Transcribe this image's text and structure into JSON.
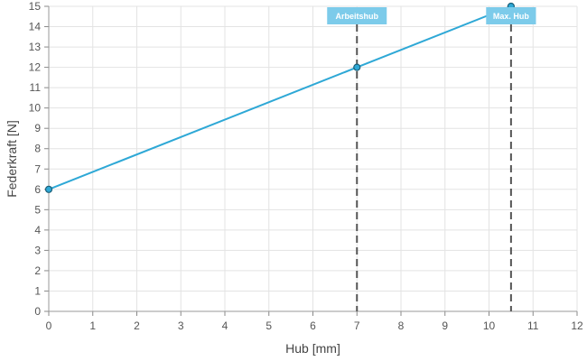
{
  "chart_data": {
    "type": "line",
    "title": "",
    "xlabel": "Hub [mm]",
    "ylabel": "Federkraft [N]",
    "xlim": [
      0,
      12
    ],
    "ylim": [
      0,
      15
    ],
    "x_ticks": [
      0,
      1,
      2,
      3,
      4,
      5,
      6,
      7,
      8,
      9,
      10,
      11,
      12
    ],
    "y_ticks": [
      0,
      1,
      2,
      3,
      4,
      5,
      6,
      7,
      8,
      9,
      10,
      11,
      12,
      13,
      14,
      15
    ],
    "grid": true,
    "series": [
      {
        "x": [
          0,
          7,
          10.5
        ],
        "y": [
          6,
          12,
          15
        ],
        "color": "#2ea8d6"
      }
    ],
    "markers": [
      {
        "label": "Arbeitshub",
        "x": 7
      },
      {
        "label": "Max. Hub",
        "x": 10.5
      }
    ],
    "colors": {
      "line": "#2ea8d6",
      "marker_label_bg": "#7ccbea",
      "vertical_line": "#555555",
      "grid": "#e3e3e3"
    }
  }
}
